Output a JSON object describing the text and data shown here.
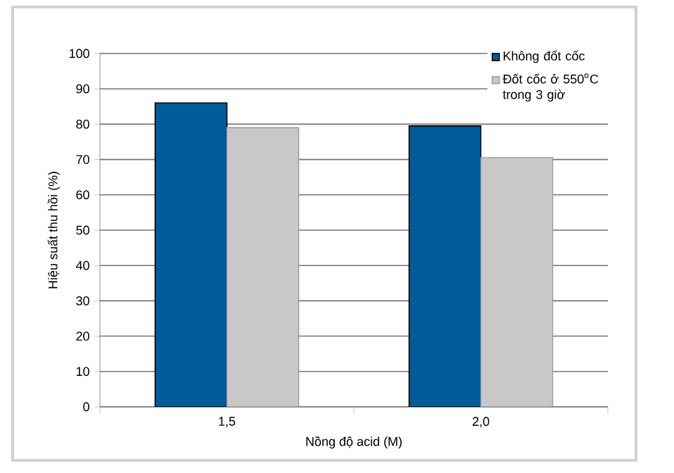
{
  "chart_data": {
    "type": "bar",
    "xlabel": "Nồng độ acid (M)",
    "ylabel": "Hiệu suất thu hồi (%)",
    "categories": [
      "1,5",
      "2,0"
    ],
    "series": [
      {
        "name": "Không đốt cốc",
        "color": "#005b9a",
        "values": [
          86,
          79.5
        ]
      },
      {
        "name": "Đốt cốc ở 550$^{o}$C trong 3 giờ",
        "color": "#c8c8c8",
        "values": [
          79,
          70.5
        ]
      }
    ],
    "ylim": [
      0,
      100
    ],
    "yticks": [
      0,
      10,
      20,
      30,
      40,
      50,
      60,
      70,
      80,
      90,
      100
    ],
    "grid": "y",
    "legend": "top right"
  }
}
